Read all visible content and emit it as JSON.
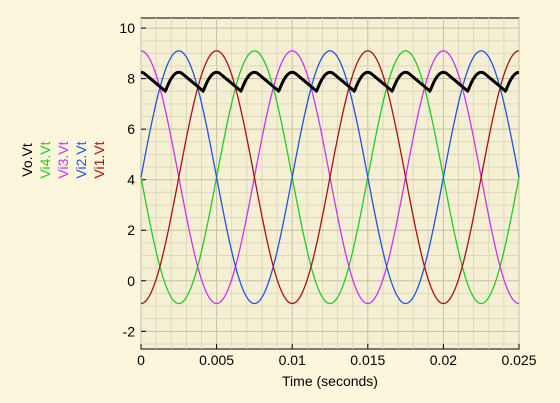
{
  "chart_data": {
    "type": "line",
    "xlabel": "Time (seconds)",
    "x_ticks": [
      "0",
      "0.005",
      "0.01",
      "0.015",
      "0.02",
      "0.025"
    ],
    "y_ticks": [
      "-2",
      "0",
      "2",
      "4",
      "6",
      "8",
      "10"
    ],
    "xlim": [
      0,
      0.025
    ],
    "ylim": [
      -2.7,
      10.4
    ],
    "grid": true,
    "legend_placement": "left, rotated labels",
    "series": [
      {
        "name": "Vo.Vt",
        "color": "#000000",
        "shape": "rectified-max"
      },
      {
        "name": "Vi4.Vt",
        "color": "#22cc22",
        "amplitude": 5,
        "offset": 4.1,
        "period": 0.01,
        "phase_deg": 180,
        "peak": 9.1,
        "trough": -0.9
      },
      {
        "name": "Vi3.Vt",
        "color": "#cc33ee",
        "amplitude": 5,
        "offset": 4.1,
        "period": 0.01,
        "phase_deg": 90,
        "peak": 9.1,
        "trough": -0.9
      },
      {
        "name": "Vi2.Vt",
        "color": "#2255dd",
        "amplitude": 5,
        "offset": 4.1,
        "period": 0.01,
        "phase_deg": 0,
        "peak": 9.1,
        "trough": -0.9
      },
      {
        "name": "Vi1.Vt",
        "color": "#aa1111",
        "amplitude": 5,
        "offset": 4.1,
        "period": 0.01,
        "phase_deg": 270,
        "peak": 9.1,
        "trough": -0.9
      }
    ]
  }
}
